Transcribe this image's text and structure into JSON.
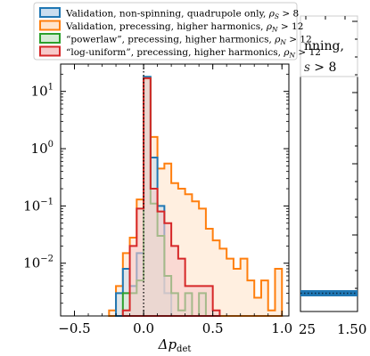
{
  "chart_data": [
    {
      "type": "step-histogram",
      "xlabel": "Δp_det",
      "xlabel_main": "Δp",
      "xlabel_sub": "det",
      "yscale": "log",
      "xlim": [
        -0.6,
        1.05
      ],
      "ylim": [
        0.0012,
        30
      ],
      "x_ticks": [
        -0.5,
        0.0,
        0.5,
        1.0
      ],
      "x_tick_labels": [
        "−0.5",
        "0.0",
        "0.5",
        "1.0"
      ],
      "y_ticks": [
        0.01,
        0.1,
        1,
        10
      ],
      "y_tick_labels": [
        {
          "base": "10",
          "exp": "−2"
        },
        {
          "base": "10",
          "exp": "−1"
        },
        {
          "base": "10",
          "exp": "0"
        },
        {
          "base": "10",
          "exp": "1"
        }
      ],
      "vline": {
        "x": 0.0,
        "style": "dotted",
        "color": "#000000"
      },
      "legend": {
        "placement": "top, above axes"
      },
      "bins_edges": [
        -0.6,
        -0.55,
        -0.5,
        -0.45,
        -0.4,
        -0.35,
        -0.3,
        -0.25,
        -0.2,
        -0.15,
        -0.1,
        -0.05,
        0.0,
        0.05,
        0.1,
        0.15,
        0.2,
        0.25,
        0.3,
        0.35,
        0.4,
        0.45,
        0.5,
        0.55,
        0.6,
        0.65,
        0.7,
        0.75,
        0.8,
        0.85,
        0.9,
        0.95,
        1.0,
        1.05
      ],
      "series": [
        {
          "name": "Validation, precessing, higher harmonics, ρ_N > 12",
          "legend_main": "Validation, precessing, higher harmonics, ",
          "legend_var": "ρ",
          "legend_sub": "N",
          "legend_tail": " > 12",
          "color": "#ff7f0e",
          "fill": "#ffe4cc",
          "values": [
            0,
            0,
            0,
            0,
            0,
            0,
            0,
            0.0015,
            0.004,
            0.015,
            0.028,
            0.13,
            16,
            1.6,
            0.45,
            0.55,
            0.25,
            0.2,
            0.16,
            0.12,
            0.09,
            0.04,
            0.025,
            0.018,
            0.012,
            0.008,
            0.012,
            0.005,
            0.0025,
            0.005,
            0.0015,
            0.008,
            0
          ]
        },
        {
          "name": "Validation, non-spinning, quadrupole only, ρ_S > 8",
          "legend_main": "Validation, non-spinning, quadrupole only, ",
          "legend_var": "ρ",
          "legend_sub": "S",
          "legend_tail": " > 8",
          "color": "#1f77b4",
          "fill": "#c9ddef",
          "values": [
            0,
            0,
            0,
            0,
            0,
            0,
            0,
            0,
            0.003,
            0.008,
            0.004,
            0.015,
            18,
            0.7,
            0.1,
            0.003,
            0,
            0,
            0,
            0,
            0,
            0,
            0,
            0,
            0,
            0,
            0,
            0,
            0,
            0,
            0,
            0,
            0
          ]
        },
        {
          "name": "“powerlaw”, precessing, higher harmonics, ρ_N > 12",
          "legend_main": "“powerlaw”, precessing, higher harmonics, ",
          "legend_var": "ρ",
          "legend_sub": "N",
          "legend_tail": " > 12",
          "color": "#2ca02c",
          "fill": "#d5ecd5",
          "values": [
            0,
            0,
            0,
            0,
            0,
            0,
            0,
            0,
            0,
            0.003,
            0.003,
            0.005,
            17,
            0.11,
            0.03,
            0.006,
            0.003,
            0.0015,
            0.003,
            0,
            0.003,
            0,
            0,
            0,
            0,
            0,
            0,
            0,
            0,
            0,
            0,
            0,
            0
          ]
        },
        {
          "name": "“log-uniform”, precessing, higher harmonics, ρ_N > 12",
          "legend_main": "“log-uniform”, precessing, higher harmonics, ",
          "legend_var": "ρ",
          "legend_sub": "N",
          "legend_tail": " > 12",
          "color": "#d62728",
          "fill": "#f7c9c9",
          "values": [
            0,
            0,
            0,
            0,
            0,
            0,
            0,
            0,
            0,
            0.0015,
            0.02,
            0.09,
            17,
            0.2,
            0.08,
            0.05,
            0.02,
            0.012,
            0.004,
            0.004,
            0.004,
            0.004,
            0.0015,
            0,
            0,
            0,
            0,
            0,
            0,
            0,
            0,
            0,
            0
          ]
        }
      ]
    }
  ],
  "background_panel": {
    "text_line1": "nning,",
    "text_line2_var": "S",
    "text_line2_tail": " > 8",
    "tick_labels": [
      "25",
      "1.50"
    ],
    "bar_color": "#1f77b4"
  }
}
